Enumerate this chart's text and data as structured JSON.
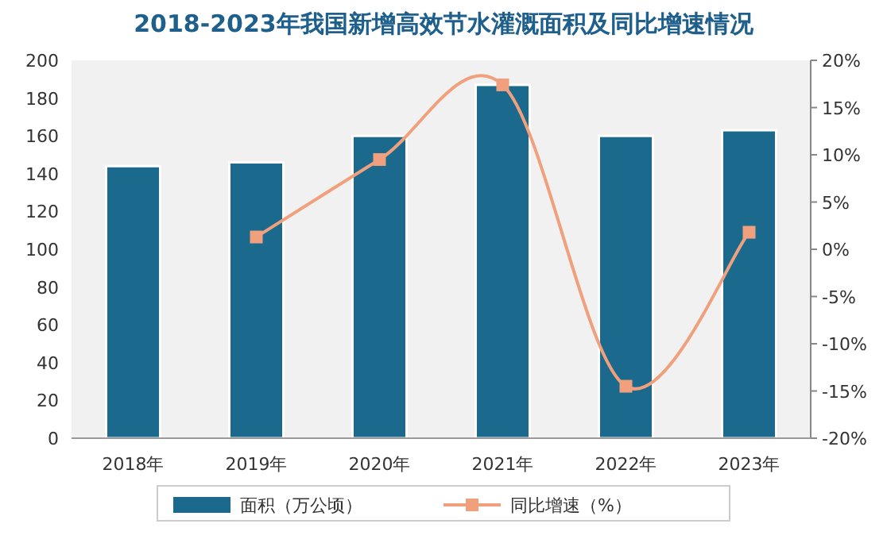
{
  "chart_data": {
    "type": "bar",
    "title": "2018-2023年我国新增高效节水灌溉面积及同比增速情况",
    "categories": [
      "2018年",
      "2019年",
      "2020年",
      "2021年",
      "2022年",
      "2023年"
    ],
    "series": [
      {
        "name": "面积（万公顷）",
        "color": "#1b6a8e",
        "values": [
          144,
          146,
          160,
          187,
          160,
          163
        ]
      },
      {
        "name": "同比增速（%）",
        "type": "line",
        "axis": "y2",
        "color": "#f0a07c",
        "values": [
          null,
          1.3,
          9.5,
          17.4,
          -14.5,
          1.8
        ]
      }
    ],
    "ylim": [
      0,
      200
    ],
    "yticks": [
      0,
      20,
      40,
      60,
      80,
      100,
      120,
      140,
      160,
      180,
      200
    ],
    "y2lim": [
      -20,
      20
    ],
    "y2ticks": [
      {
        "value": -20,
        "label": "-20%"
      },
      {
        "value": -15,
        "label": "-15%"
      },
      {
        "value": -10,
        "label": "-10%"
      },
      {
        "value": -5,
        "label": "-5%"
      },
      {
        "value": 0,
        "label": "0%"
      },
      {
        "value": 5,
        "label": "5%"
      },
      {
        "value": 10,
        "label": "10%"
      },
      {
        "value": 15,
        "label": "15%"
      },
      {
        "value": 20,
        "label": "20%"
      }
    ],
    "legend": "bottom",
    "marker": "square",
    "grid": false
  }
}
